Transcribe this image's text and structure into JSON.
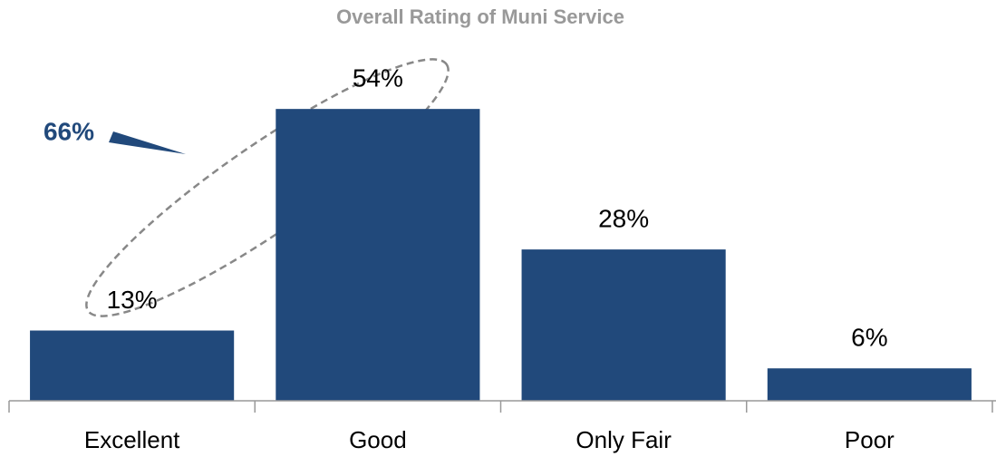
{
  "chart_data": {
    "type": "bar",
    "title": "Overall Rating of Muni Service",
    "categories": [
      "Excellent",
      "Good",
      "Only Fair",
      "Poor"
    ],
    "values": [
      13,
      54,
      28,
      6
    ],
    "value_labels": [
      "13%",
      "54%",
      "28%",
      "6%"
    ],
    "color": "#21497b",
    "annotation": "66%"
  }
}
